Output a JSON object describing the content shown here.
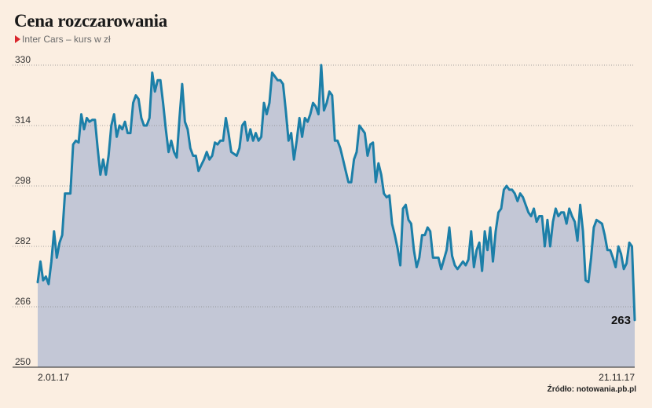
{
  "header": {
    "title": "Cena rozczarowania",
    "subtitle": "Inter Cars – kurs w zł"
  },
  "source": "Źródło: notowania.pb.pl",
  "colors": {
    "line": "#1c7fa8",
    "area": "#c3c7d6",
    "background": "#fbeee1",
    "grid": "#888888",
    "marker": "#d9262c"
  },
  "chart_data": {
    "type": "area",
    "title": "Cena rozczarowania",
    "subtitle": "Inter Cars – kurs w zł",
    "xlabel": "",
    "ylabel": "",
    "ylim": [
      250,
      330
    ],
    "yticks": [
      250,
      266,
      282,
      298,
      314,
      330
    ],
    "x_tick_labels": [
      "2.01.17",
      "21.11.17"
    ],
    "grid": "horizontal dotted",
    "end_label": "263",
    "series": [
      {
        "values": [
          272.5,
          278,
          273,
          274,
          272,
          278,
          286,
          279,
          283,
          285,
          296,
          296,
          296,
          309,
          310,
          309.5,
          317,
          313,
          316,
          315,
          315.5,
          315.5,
          308,
          301,
          305,
          301,
          306,
          314,
          317,
          311,
          314,
          313,
          315,
          312,
          312,
          320,
          322,
          321,
          316,
          314,
          314,
          316,
          328,
          323,
          326,
          326,
          320,
          313,
          307,
          310,
          307,
          305.5,
          316,
          325,
          315,
          313,
          308,
          306,
          306,
          302,
          303.5,
          305,
          307,
          305,
          306,
          309.5,
          309,
          310,
          310,
          316,
          312,
          307,
          306.5,
          306,
          308,
          314,
          315,
          310,
          313,
          310,
          312,
          310,
          311,
          320,
          317,
          320,
          328,
          327,
          326,
          326,
          325,
          318,
          310,
          312,
          305,
          310,
          316,
          311,
          316,
          315,
          317,
          320,
          319,
          317,
          330,
          318,
          320,
          323,
          322,
          310,
          310,
          308,
          305,
          302,
          299,
          299,
          305,
          307,
          314,
          313,
          312,
          306,
          309,
          309.5,
          299,
          304,
          301,
          296,
          295,
          295.5,
          288,
          285,
          281.5,
          277,
          292,
          293,
          289,
          288,
          281,
          276.5,
          279,
          285,
          285,
          287,
          286,
          279,
          279,
          279,
          276,
          278.5,
          281,
          287,
          279.5,
          277,
          276,
          277,
          278,
          277,
          278.5,
          286,
          276.5,
          281,
          283,
          275.5,
          286,
          281,
          287,
          278,
          286,
          291,
          292,
          297,
          298,
          297,
          297,
          296,
          294,
          296,
          295,
          293,
          291,
          290,
          292,
          288.5,
          290,
          290,
          282,
          289,
          282,
          288.5,
          292,
          290,
          291,
          291,
          288,
          292,
          290,
          288.5,
          283.5,
          293,
          286,
          273,
          272.5,
          279,
          287,
          289,
          288.5,
          288,
          285,
          281,
          281,
          279,
          276.5,
          282,
          280,
          276,
          277.5,
          283,
          282,
          262.5
        ]
      }
    ]
  }
}
